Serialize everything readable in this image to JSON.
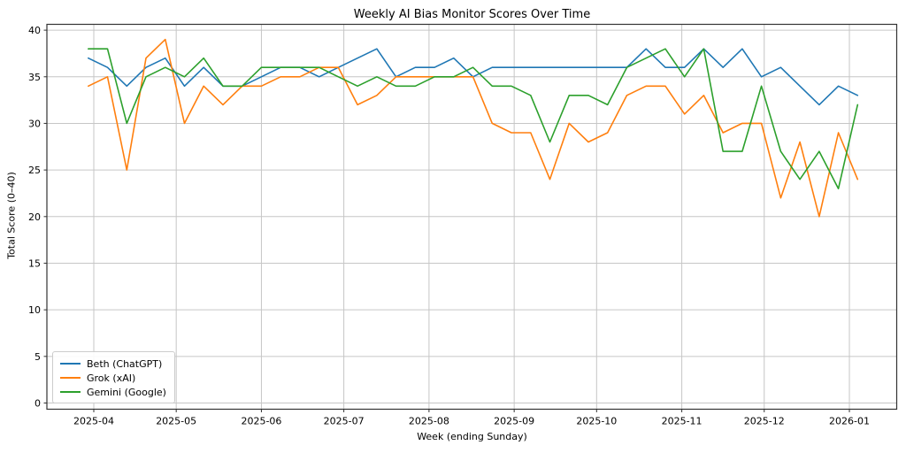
{
  "chart_data": {
    "type": "line",
    "title": "Weekly AI Bias Monitor Scores Over Time",
    "xlabel": "Week (ending Sunday)",
    "ylabel": "Total Score (0–40)",
    "grid": true,
    "legend_position": "lower left",
    "ylim": [
      0,
      40
    ],
    "yticks": [
      0,
      5,
      10,
      15,
      20,
      25,
      30,
      35,
      40
    ],
    "xticks": [
      {
        "label": "2025-04",
        "date": "2025-04-01"
      },
      {
        "label": "2025-05",
        "date": "2025-05-01"
      },
      {
        "label": "2025-06",
        "date": "2025-06-01"
      },
      {
        "label": "2025-07",
        "date": "2025-07-01"
      },
      {
        "label": "2025-08",
        "date": "2025-08-01"
      },
      {
        "label": "2025-09",
        "date": "2025-09-01"
      },
      {
        "label": "2025-10",
        "date": "2025-10-01"
      },
      {
        "label": "2025-11",
        "date": "2025-11-01"
      },
      {
        "label": "2025-12",
        "date": "2025-12-01"
      },
      {
        "label": "2026-01",
        "date": "2026-01-01"
      }
    ],
    "x_dates": [
      "2025-03-30",
      "2025-04-06",
      "2025-04-13",
      "2025-04-20",
      "2025-04-27",
      "2025-05-04",
      "2025-05-11",
      "2025-05-18",
      "2025-05-25",
      "2025-06-01",
      "2025-06-08",
      "2025-06-15",
      "2025-06-22",
      "2025-06-29",
      "2025-07-06",
      "2025-07-13",
      "2025-07-20",
      "2025-07-27",
      "2025-08-03",
      "2025-08-10",
      "2025-08-17",
      "2025-08-24",
      "2025-08-31",
      "2025-09-07",
      "2025-09-14",
      "2025-09-21",
      "2025-09-28",
      "2025-10-05",
      "2025-10-12",
      "2025-10-19",
      "2025-10-26",
      "2025-11-02",
      "2025-11-09",
      "2025-11-16",
      "2025-11-23",
      "2025-11-30",
      "2025-12-07",
      "2025-12-14",
      "2025-12-21",
      "2025-12-28",
      "2026-01-04"
    ],
    "series": [
      {
        "name": "Beth (ChatGPT)",
        "color": "#1f77b4",
        "values": [
          37,
          36,
          34,
          36,
          37,
          34,
          36,
          34,
          34,
          35,
          36,
          36,
          35,
          36,
          37,
          38,
          35,
          36,
          36,
          37,
          35,
          36,
          36,
          36,
          36,
          36,
          36,
          36,
          36,
          38,
          36,
          36,
          38,
          36,
          38,
          35,
          36,
          34,
          32,
          34,
          33
        ]
      },
      {
        "name": "Grok (xAI)",
        "color": "#ff7f0e",
        "values": [
          34,
          35,
          25,
          37,
          39,
          30,
          34,
          32,
          34,
          34,
          35,
          35,
          36,
          36,
          32,
          33,
          35,
          35,
          35,
          35,
          35,
          30,
          29,
          29,
          24,
          30,
          28,
          29,
          33,
          34,
          34,
          31,
          33,
          29,
          30,
          30,
          22,
          28,
          20,
          29,
          24
        ]
      },
      {
        "name": "Gemini (Google)",
        "color": "#2ca02c",
        "values": [
          38,
          38,
          30,
          35,
          36,
          35,
          37,
          34,
          34,
          36,
          36,
          36,
          36,
          35,
          34,
          35,
          34,
          34,
          35,
          35,
          36,
          34,
          34,
          33,
          28,
          33,
          33,
          32,
          36,
          37,
          38,
          35,
          38,
          27,
          27,
          34,
          27,
          24,
          27,
          23,
          32
        ]
      }
    ]
  }
}
